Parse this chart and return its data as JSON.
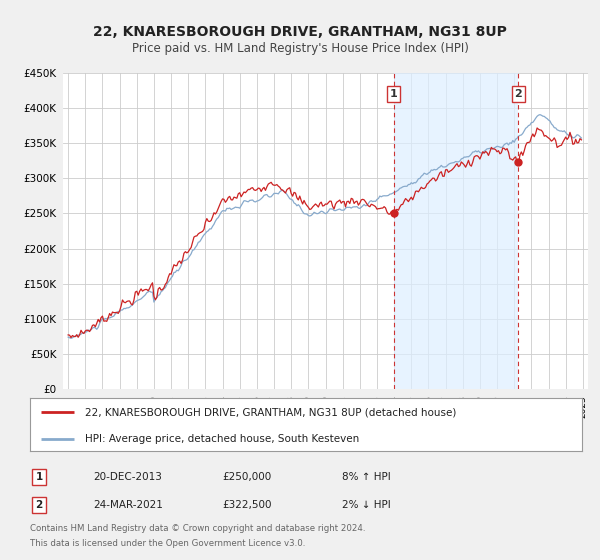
{
  "title": "22, KNARESBOROUGH DRIVE, GRANTHAM, NG31 8UP",
  "subtitle": "Price paid vs. HM Land Registry's House Price Index (HPI)",
  "legend_label_red": "22, KNARESBOROUGH DRIVE, GRANTHAM, NG31 8UP (detached house)",
  "legend_label_blue": "HPI: Average price, detached house, South Kesteven",
  "annotation1_date": "20-DEC-2013",
  "annotation1_price": "£250,000",
  "annotation1_hpi": "8% ↑ HPI",
  "annotation1_year": 2013.97,
  "annotation1_value": 250000,
  "annotation2_date": "24-MAR-2021",
  "annotation2_price": "£322,500",
  "annotation2_hpi": "2% ↓ HPI",
  "annotation2_year": 2021.23,
  "annotation2_value": 322500,
  "footer1": "Contains HM Land Registry data © Crown copyright and database right 2024.",
  "footer2": "This data is licensed under the Open Government Licence v3.0.",
  "bg_color": "#f0f0f0",
  "plot_bg_color": "#ffffff",
  "red_color": "#cc2222",
  "blue_color": "#88aacc",
  "blue_fill_color": "#ddeeff",
  "grid_color": "#cccccc",
  "vline_color": "#cc3333",
  "ylim": [
    0,
    450000
  ],
  "yticks": [
    0,
    50000,
    100000,
    150000,
    200000,
    250000,
    300000,
    350000,
    400000,
    450000
  ],
  "xlim_start": 1994.7,
  "xlim_end": 2025.3
}
